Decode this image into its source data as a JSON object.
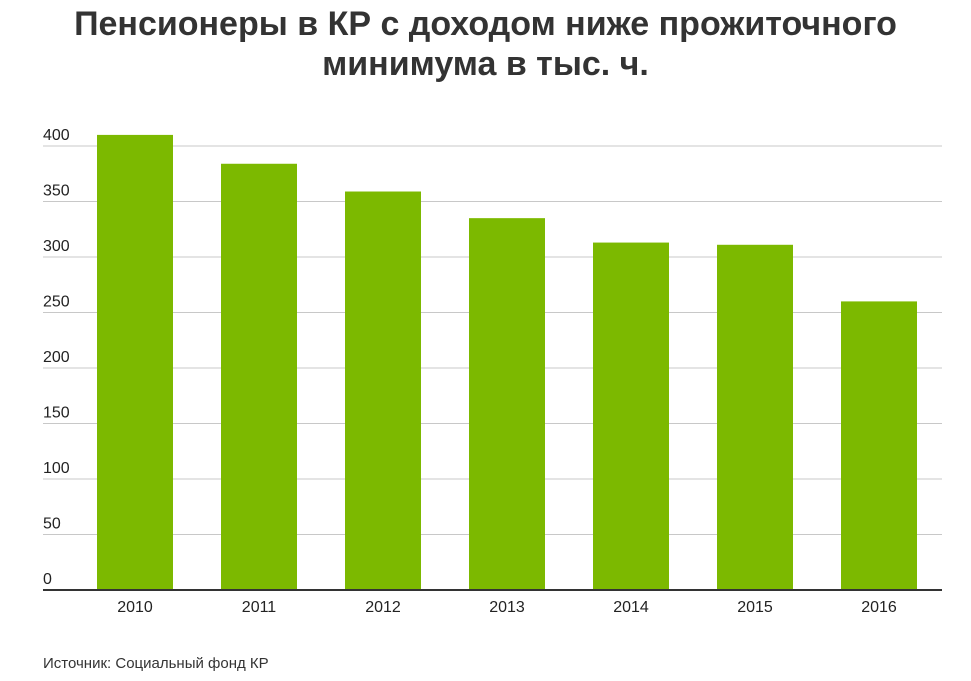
{
  "chart_data": {
    "type": "bar",
    "title_line1": "Пенсионеры в КР с доходом ниже прожиточного",
    "title_line2": "минимума в тыс. ч.",
    "categories": [
      "2010",
      "2011",
      "2012",
      "2013",
      "2014",
      "2015",
      "2016"
    ],
    "values": [
      410,
      384,
      359,
      335,
      313,
      311,
      260
    ],
    "ylim": [
      0,
      400
    ],
    "yticks": [
      0,
      50,
      100,
      150,
      200,
      250,
      300,
      350,
      400
    ],
    "grid": true,
    "bar_color": "#7cb900",
    "source": "Источник: Социальный фонд КР"
  }
}
